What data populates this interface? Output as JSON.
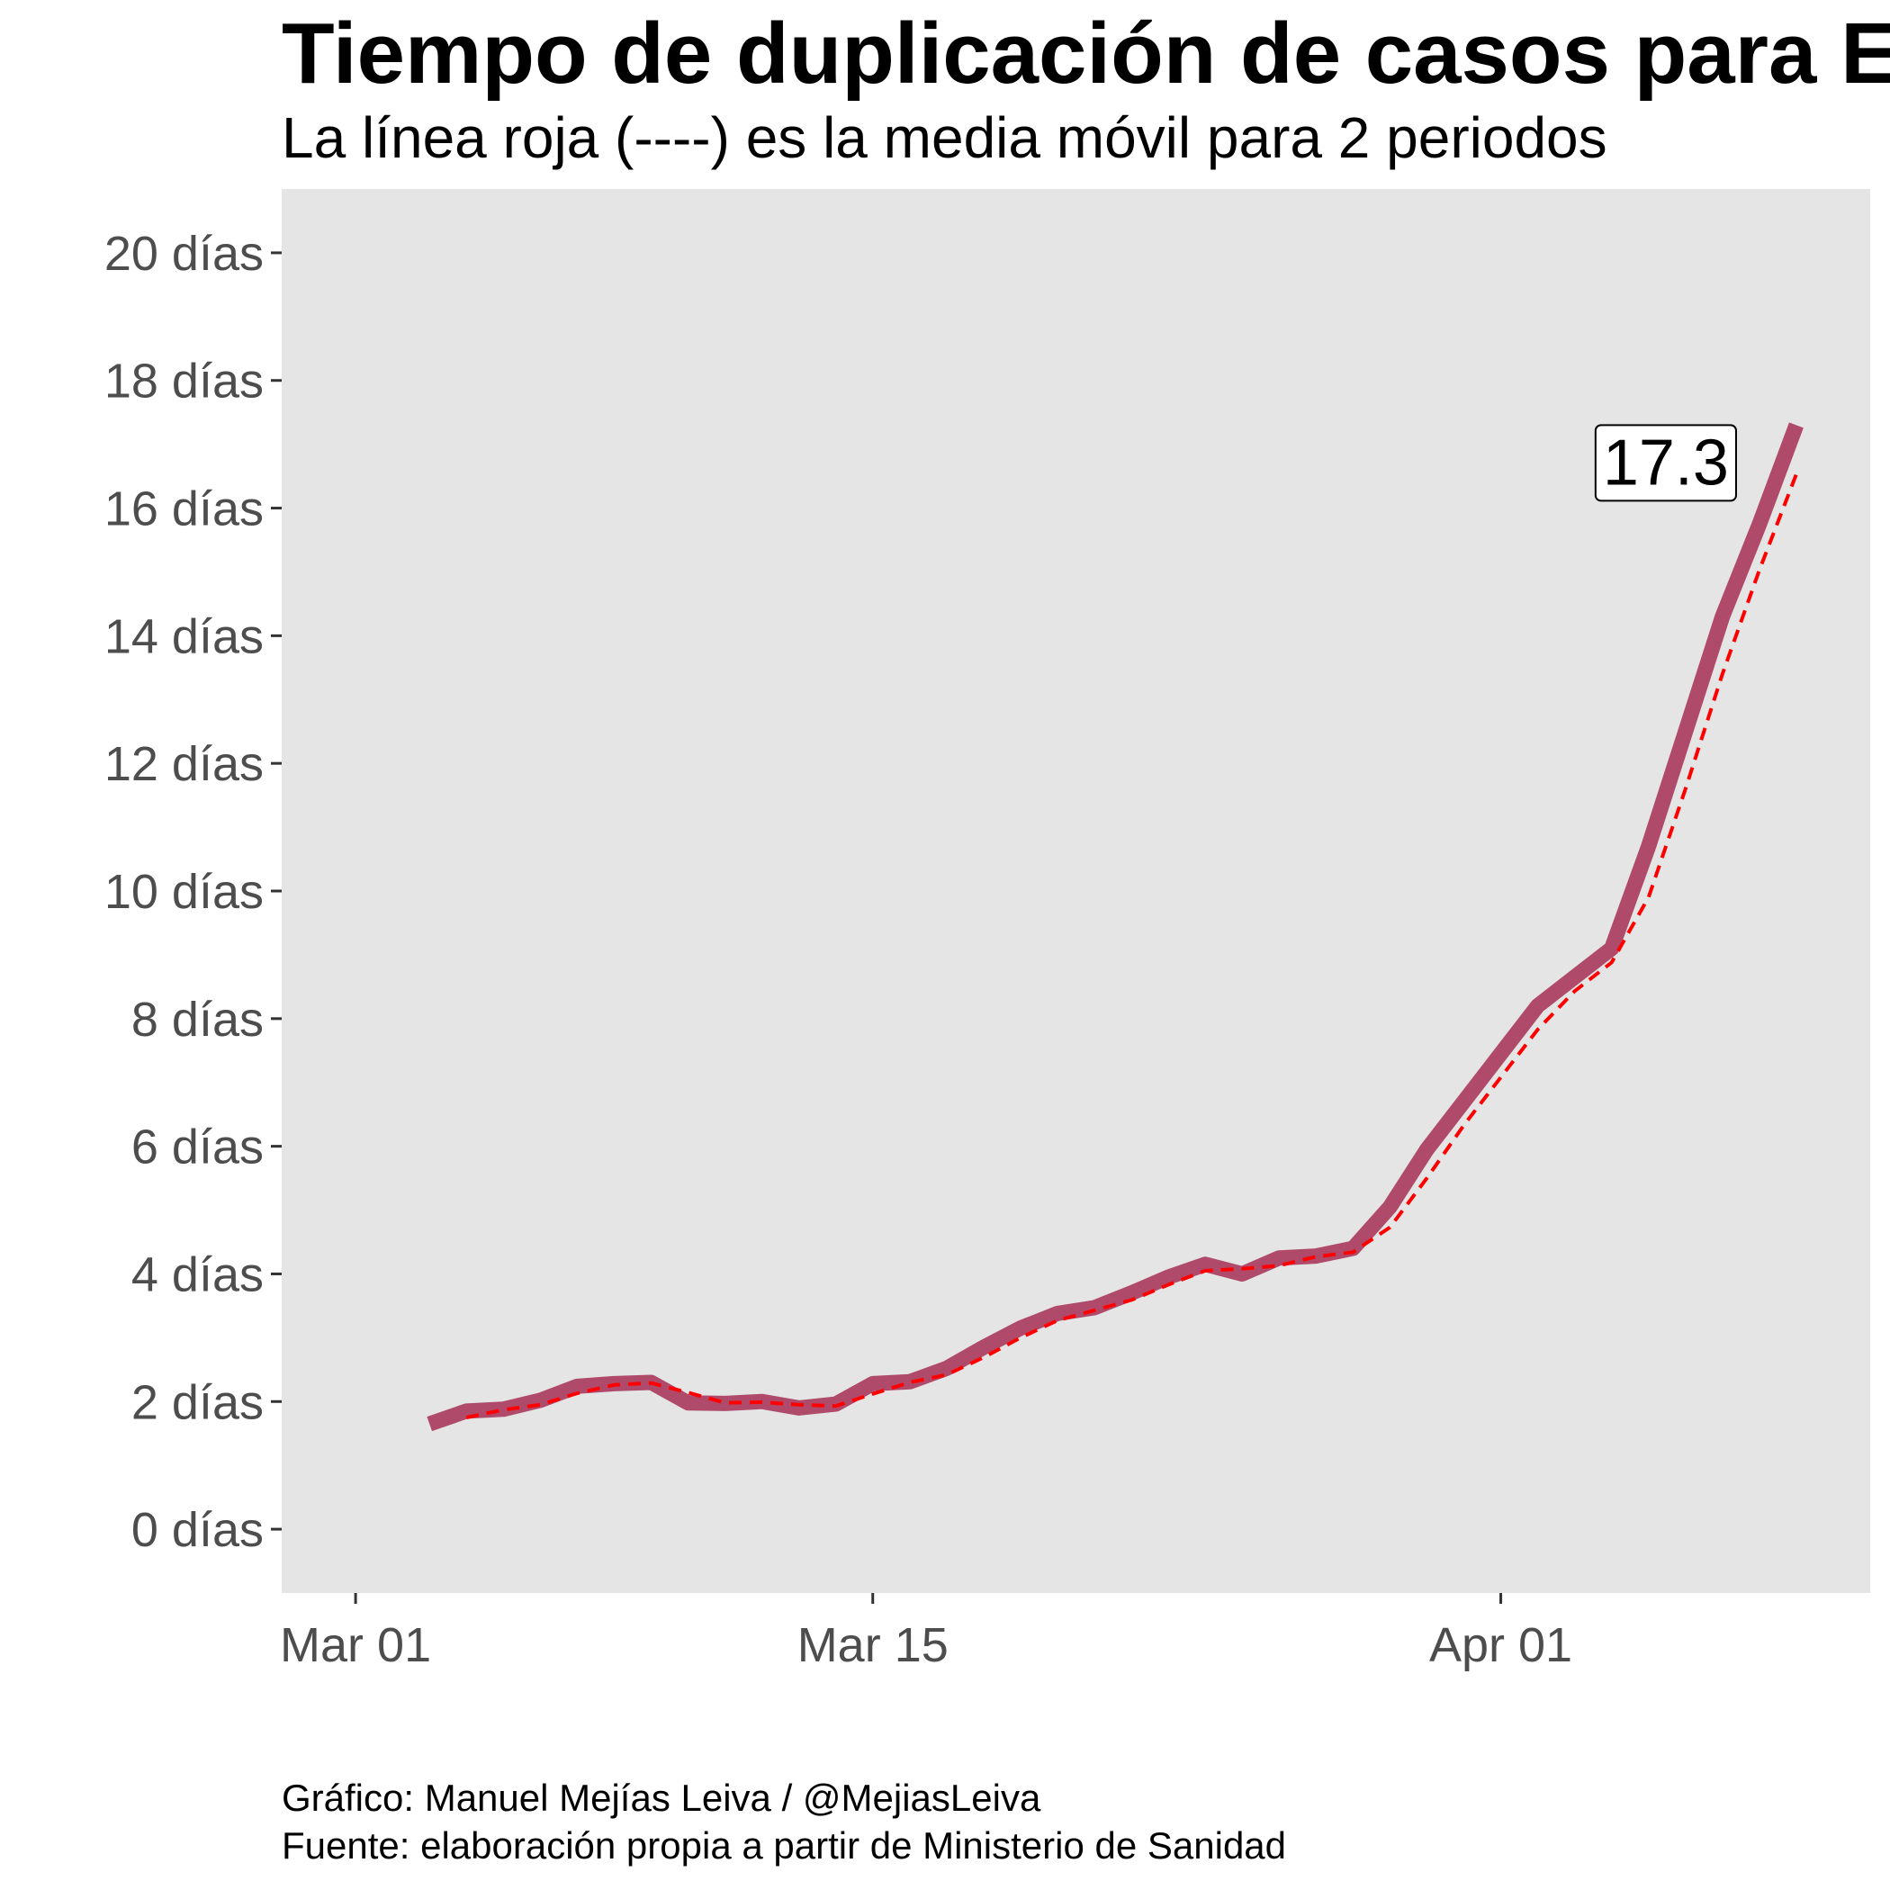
{
  "chart_data": {
    "type": "line",
    "title": "Tiempo de duplicación de casos para E",
    "subtitle": "La línea roja (----) es la media móvil para 2 periodos",
    "caption": [
      "Gráfico: Manuel Mejías Leiva / @MejiasLeiva",
      "Fuente: elaboración propia a partir de Ministerio de Sanidad"
    ],
    "x_axis": {
      "type": "date",
      "range": [
        "2020-02-28",
        "2020-04-11"
      ],
      "ticks": [
        {
          "date": "2020-03-01",
          "label": "Mar 01"
        },
        {
          "date": "2020-03-15",
          "label": "Mar 15"
        },
        {
          "date": "2020-04-01",
          "label": "Apr 01"
        }
      ]
    },
    "y_axis": {
      "range": [
        -1,
        21
      ],
      "ticks": [
        {
          "value": 0,
          "label": "0 días"
        },
        {
          "value": 2,
          "label": "2 días"
        },
        {
          "value": 4,
          "label": "4 días"
        },
        {
          "value": 6,
          "label": "6 días"
        },
        {
          "value": 8,
          "label": "8 días"
        },
        {
          "value": 10,
          "label": "10 días"
        },
        {
          "value": 12,
          "label": "12 días"
        },
        {
          "value": 14,
          "label": "14 días"
        },
        {
          "value": 16,
          "label": "16 días"
        },
        {
          "value": 18,
          "label": "18 días"
        },
        {
          "value": 20,
          "label": "20 días"
        }
      ]
    },
    "grid": false,
    "background_color": "#e5e5e5",
    "series": [
      {
        "style": "solid-thick",
        "color": "#b04a6a",
        "points": [
          {
            "x": "2020-03-03",
            "y": 1.65
          },
          {
            "x": "2020-03-04",
            "y": 1.85
          },
          {
            "x": "2020-03-05",
            "y": 1.88
          },
          {
            "x": "2020-03-06",
            "y": 2.02
          },
          {
            "x": "2020-03-07",
            "y": 2.24
          },
          {
            "x": "2020-03-08",
            "y": 2.28
          },
          {
            "x": "2020-03-09",
            "y": 2.3
          },
          {
            "x": "2020-03-10",
            "y": 1.98
          },
          {
            "x": "2020-03-11",
            "y": 1.97
          },
          {
            "x": "2020-03-12",
            "y": 2.0
          },
          {
            "x": "2020-03-13",
            "y": 1.9
          },
          {
            "x": "2020-03-14",
            "y": 1.96
          },
          {
            "x": "2020-03-15",
            "y": 2.28
          },
          {
            "x": "2020-03-16",
            "y": 2.31
          },
          {
            "x": "2020-03-17",
            "y": 2.52
          },
          {
            "x": "2020-03-18",
            "y": 2.85
          },
          {
            "x": "2020-03-19",
            "y": 3.15
          },
          {
            "x": "2020-03-20",
            "y": 3.38
          },
          {
            "x": "2020-03-21",
            "y": 3.47
          },
          {
            "x": "2020-03-22",
            "y": 3.7
          },
          {
            "x": "2020-03-23",
            "y": 3.95
          },
          {
            "x": "2020-03-24",
            "y": 4.15
          },
          {
            "x": "2020-03-25",
            "y": 4.0
          },
          {
            "x": "2020-03-26",
            "y": 4.25
          },
          {
            "x": "2020-03-27",
            "y": 4.28
          },
          {
            "x": "2020-03-28",
            "y": 4.4
          },
          {
            "x": "2020-03-29",
            "y": 5.05
          },
          {
            "x": "2020-03-30",
            "y": 5.95
          },
          {
            "x": "2020-03-31",
            "y": 6.7
          },
          {
            "x": "2020-04-01",
            "y": 7.45
          },
          {
            "x": "2020-04-02",
            "y": 8.2
          },
          {
            "x": "2020-04-03",
            "y": 8.65
          },
          {
            "x": "2020-04-04",
            "y": 9.1
          },
          {
            "x": "2020-04-05",
            "y": 10.7
          },
          {
            "x": "2020-04-06",
            "y": 12.5
          },
          {
            "x": "2020-04-07",
            "y": 14.3
          },
          {
            "x": "2020-04-08",
            "y": 15.75
          },
          {
            "x": "2020-04-09",
            "y": 17.3
          }
        ]
      },
      {
        "style": "dashed",
        "color": "#ff0000",
        "points": [
          {
            "x": "2020-03-04",
            "y": 1.75
          },
          {
            "x": "2020-03-05",
            "y": 1.87
          },
          {
            "x": "2020-03-06",
            "y": 1.95
          },
          {
            "x": "2020-03-07",
            "y": 2.13
          },
          {
            "x": "2020-03-08",
            "y": 2.26
          },
          {
            "x": "2020-03-09",
            "y": 2.29
          },
          {
            "x": "2020-03-10",
            "y": 2.14
          },
          {
            "x": "2020-03-11",
            "y": 1.98
          },
          {
            "x": "2020-03-12",
            "y": 1.99
          },
          {
            "x": "2020-03-13",
            "y": 1.95
          },
          {
            "x": "2020-03-14",
            "y": 1.93
          },
          {
            "x": "2020-03-15",
            "y": 2.12
          },
          {
            "x": "2020-03-16",
            "y": 2.3
          },
          {
            "x": "2020-03-17",
            "y": 2.42
          },
          {
            "x": "2020-03-18",
            "y": 2.69
          },
          {
            "x": "2020-03-19",
            "y": 3.0
          },
          {
            "x": "2020-03-20",
            "y": 3.27
          },
          {
            "x": "2020-03-21",
            "y": 3.43
          },
          {
            "x": "2020-03-22",
            "y": 3.59
          },
          {
            "x": "2020-03-23",
            "y": 3.83
          },
          {
            "x": "2020-03-24",
            "y": 4.05
          },
          {
            "x": "2020-03-25",
            "y": 4.08
          },
          {
            "x": "2020-03-26",
            "y": 4.13
          },
          {
            "x": "2020-03-27",
            "y": 4.27
          },
          {
            "x": "2020-03-28",
            "y": 4.34
          },
          {
            "x": "2020-03-29",
            "y": 4.73
          },
          {
            "x": "2020-03-30",
            "y": 5.5
          },
          {
            "x": "2020-03-31",
            "y": 6.33
          },
          {
            "x": "2020-04-01",
            "y": 7.08
          },
          {
            "x": "2020-04-02",
            "y": 7.83
          },
          {
            "x": "2020-04-03",
            "y": 8.43
          },
          {
            "x": "2020-04-04",
            "y": 8.88
          },
          {
            "x": "2020-04-05",
            "y": 9.9
          },
          {
            "x": "2020-04-06",
            "y": 11.6
          },
          {
            "x": "2020-04-07",
            "y": 13.4
          },
          {
            "x": "2020-04-08",
            "y": 15.03
          },
          {
            "x": "2020-04-09",
            "y": 16.53
          }
        ]
      }
    ],
    "annotations": [
      {
        "x": "2020-04-09",
        "y": 17.3,
        "label": "17.3"
      }
    ]
  }
}
